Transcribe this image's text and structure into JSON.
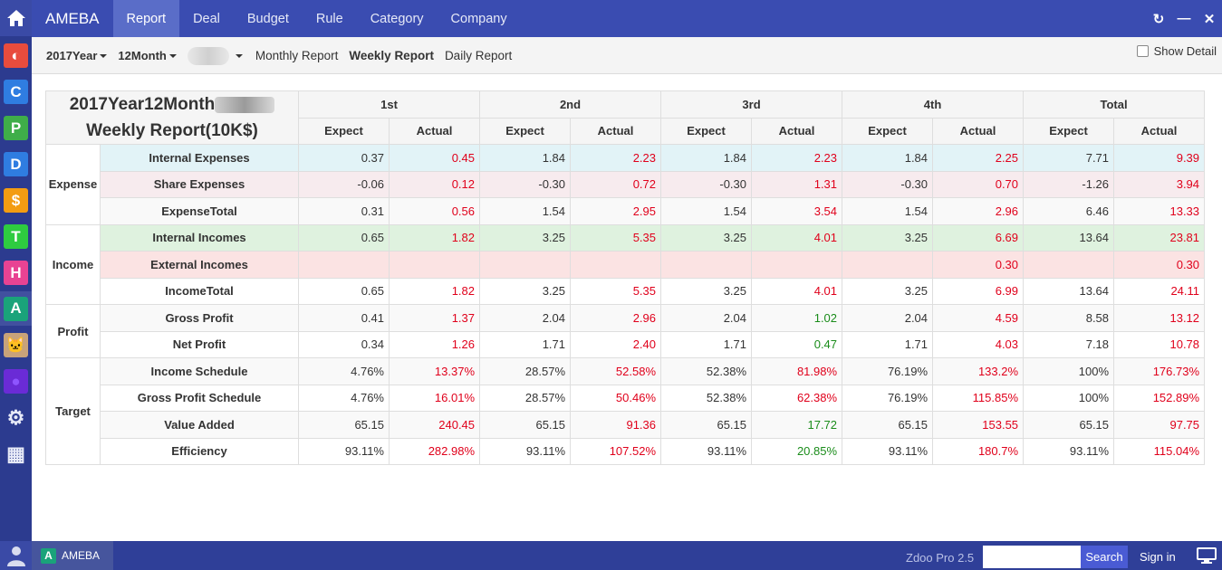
{
  "topnav": {
    "brand": "AMEBA",
    "items": [
      "Report",
      "Deal",
      "Budget",
      "Rule",
      "Category",
      "Company"
    ],
    "active": "Report",
    "controls": {
      "refresh": "↻",
      "minimize": "—",
      "close": "✕"
    }
  },
  "dock": {
    "apps": [
      {
        "icon": "half-circle-icon",
        "color": "#e84c3d",
        "glyph": "◐"
      },
      {
        "icon": "c-icon",
        "color": "#2f7de1",
        "glyph": "C"
      },
      {
        "icon": "p-icon",
        "color": "#3fae49",
        "glyph": "P"
      },
      {
        "icon": "d-icon",
        "color": "#2f7de1",
        "glyph": "D"
      },
      {
        "icon": "dollar-icon",
        "color": "#f39c12",
        "glyph": "$"
      },
      {
        "icon": "t-icon",
        "color": "#2ecc40",
        "glyph": "T"
      },
      {
        "icon": "h-icon",
        "color": "#e84393",
        "glyph": "H"
      },
      {
        "icon": "ameba-icon",
        "color": "#1aa37a",
        "glyph": "A"
      },
      {
        "icon": "cat-avatar-icon",
        "color": "#c8a27a",
        "glyph": "🐱"
      },
      {
        "icon": "purple-circle-icon",
        "color": "#6a2bd6",
        "glyph": "●"
      },
      {
        "icon": "gear-icon",
        "color": "#2c3b8f",
        "glyph": "⚙"
      },
      {
        "icon": "grid-icon",
        "color": "#2c3b8f",
        "glyph": "▦"
      }
    ]
  },
  "subbar": {
    "year": "2017Year",
    "month": "12Month",
    "links": [
      "Monthly Report",
      "Weekly Report",
      "Daily Report"
    ],
    "active_link": "Weekly Report",
    "show_detail": "Show Detail"
  },
  "report": {
    "title_line1": "2017Year12Month",
    "title_line2": "Weekly Report(10K$)",
    "periods": [
      "1st",
      "2nd",
      "3rd",
      "4th",
      "Total"
    ],
    "sub_headers": [
      "Expect",
      "Actual"
    ],
    "groups": [
      {
        "name": "Expense",
        "rows": [
          {
            "label": "Internal Expenses",
            "style": "row-blue",
            "cells": [
              [
                "0.37",
                "r",
                "0.45"
              ],
              [
                "1.84",
                "r",
                "2.23"
              ],
              [
                "1.84",
                "r",
                "2.23"
              ],
              [
                "1.84",
                "r",
                "2.25"
              ],
              [
                "7.71",
                "r",
                "9.39"
              ]
            ]
          },
          {
            "label": "Share Expenses",
            "style": "row-pink",
            "cells": [
              [
                "-0.06",
                "r",
                "0.12"
              ],
              [
                "-0.30",
                "r",
                "0.72"
              ],
              [
                "-0.30",
                "r",
                "1.31"
              ],
              [
                "-0.30",
                "r",
                "0.70"
              ],
              [
                "-1.26",
                "r",
                "3.94"
              ]
            ]
          },
          {
            "label": "ExpenseTotal",
            "style": "row-gray",
            "cells": [
              [
                "0.31",
                "r",
                "0.56"
              ],
              [
                "1.54",
                "r",
                "2.95"
              ],
              [
                "1.54",
                "r",
                "3.54"
              ],
              [
                "1.54",
                "r",
                "2.96"
              ],
              [
                "6.46",
                "r",
                "13.33"
              ]
            ]
          }
        ]
      },
      {
        "name": "Income",
        "rows": [
          {
            "label": "Internal Incomes",
            "style": "row-green",
            "cells": [
              [
                "0.65",
                "r",
                "1.82"
              ],
              [
                "3.25",
                "r",
                "5.35"
              ],
              [
                "3.25",
                "r",
                "4.01"
              ],
              [
                "3.25",
                "r",
                "6.69"
              ],
              [
                "13.64",
                "r",
                "23.81"
              ]
            ]
          },
          {
            "label": "External Incomes",
            "style": "row-rose",
            "cells": [
              [
                "",
                "r",
                ""
              ],
              [
                "",
                "r",
                ""
              ],
              [
                "",
                "r",
                ""
              ],
              [
                "",
                "r",
                "0.30"
              ],
              [
                "",
                "r",
                "0.30"
              ]
            ]
          },
          {
            "label": "IncomeTotal",
            "style": "row-white",
            "cells": [
              [
                "0.65",
                "r",
                "1.82"
              ],
              [
                "3.25",
                "r",
                "5.35"
              ],
              [
                "3.25",
                "r",
                "4.01"
              ],
              [
                "3.25",
                "r",
                "6.99"
              ],
              [
                "13.64",
                "r",
                "24.11"
              ]
            ]
          }
        ]
      },
      {
        "name": "Profit",
        "rows": [
          {
            "label": "Gross Profit",
            "style": "row-gray",
            "cells": [
              [
                "0.41",
                "r",
                "1.37"
              ],
              [
                "2.04",
                "r",
                "2.96"
              ],
              [
                "2.04",
                "g",
                "1.02"
              ],
              [
                "2.04",
                "r",
                "4.59"
              ],
              [
                "8.58",
                "r",
                "13.12"
              ]
            ]
          },
          {
            "label": "Net Profit",
            "style": "row-white",
            "cells": [
              [
                "0.34",
                "r",
                "1.26"
              ],
              [
                "1.71",
                "r",
                "2.40"
              ],
              [
                "1.71",
                "g",
                "0.47"
              ],
              [
                "1.71",
                "r",
                "4.03"
              ],
              [
                "7.18",
                "r",
                "10.78"
              ]
            ]
          }
        ]
      },
      {
        "name": "Target",
        "rows": [
          {
            "label": "Income Schedule",
            "style": "row-gray",
            "cells": [
              [
                "4.76%",
                "r",
                "13.37%"
              ],
              [
                "28.57%",
                "r",
                "52.58%"
              ],
              [
                "52.38%",
                "r",
                "81.98%"
              ],
              [
                "76.19%",
                "r",
                "133.2%"
              ],
              [
                "100%",
                "r",
                "176.73%"
              ]
            ]
          },
          {
            "label": "Gross Profit Schedule",
            "style": "row-white",
            "cells": [
              [
                "4.76%",
                "r",
                "16.01%"
              ],
              [
                "28.57%",
                "r",
                "50.46%"
              ],
              [
                "52.38%",
                "r",
                "62.38%"
              ],
              [
                "76.19%",
                "r",
                "115.85%"
              ],
              [
                "100%",
                "r",
                "152.89%"
              ]
            ]
          },
          {
            "label": "Value Added",
            "style": "row-gray",
            "cells": [
              [
                "65.15",
                "r",
                "240.45"
              ],
              [
                "65.15",
                "r",
                "91.36"
              ],
              [
                "65.15",
                "g",
                "17.72"
              ],
              [
                "65.15",
                "r",
                "153.55"
              ],
              [
                "65.15",
                "r",
                "97.75"
              ]
            ]
          },
          {
            "label": "Efficiency",
            "style": "row-white",
            "cells": [
              [
                "93.11%",
                "r",
                "282.98%"
              ],
              [
                "93.11%",
                "r",
                "107.52%"
              ],
              [
                "93.11%",
                "g",
                "20.85%"
              ],
              [
                "93.11%",
                "r",
                "180.7%"
              ],
              [
                "93.11%",
                "r",
                "115.04%"
              ]
            ]
          }
        ]
      }
    ]
  },
  "bottombar": {
    "app_label": "AMEBA",
    "version": "Zdoo Pro 2.5",
    "search_button": "Search",
    "search_placeholder": "",
    "signin": "Sign in"
  },
  "colors": {
    "nav": "#3a4cb1",
    "dock": "#2c3b8f",
    "red": "#e0001b",
    "green": "#1a8c1a"
  }
}
